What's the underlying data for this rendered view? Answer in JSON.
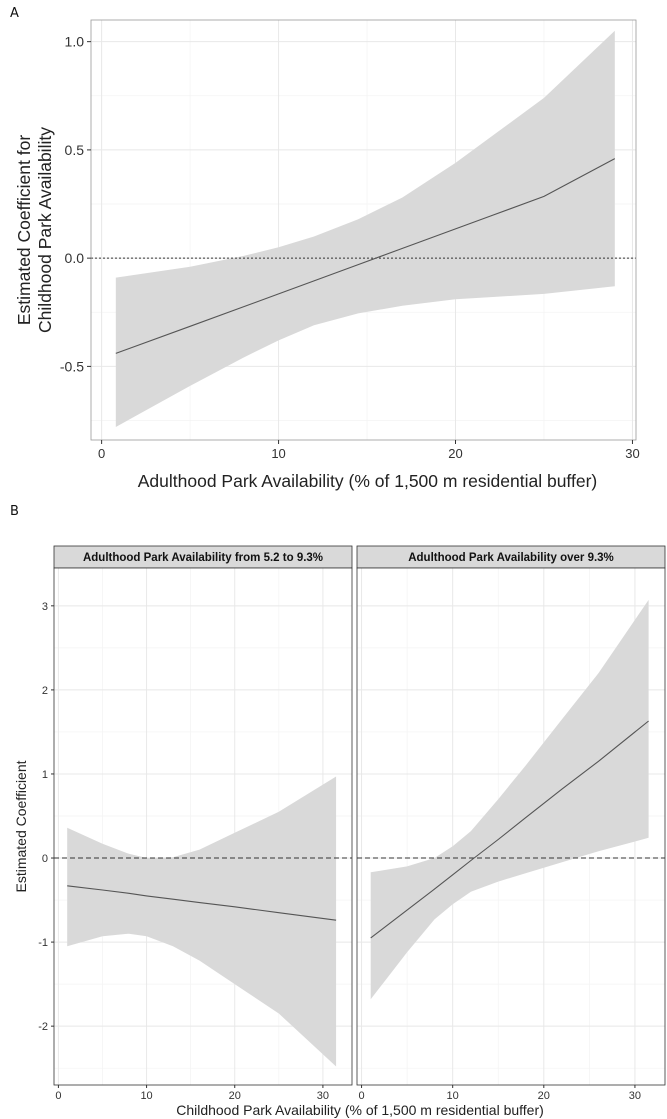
{
  "figure": {
    "panel_a_label": "A",
    "panel_b_label": "B"
  },
  "colors": {
    "ribbon": "#d9d9d9",
    "line": "#555555",
    "grid_major": "#e8e8e8",
    "grid_minor": "#f3f3f3",
    "strip_bg": "#d9d9d9",
    "border": "#333333"
  },
  "chart_data": [
    {
      "type": "line",
      "panel": "A",
      "xlabel": "Adulthood Park Availability (% of 1,500 m residential buffer)",
      "ylabel": "Estimated Coefficient for Childhood Park Availability",
      "xlim": [
        -0.6,
        30.2
      ],
      "ylim": [
        -0.84,
        1.1
      ],
      "xticks": [
        0,
        10,
        20,
        30
      ],
      "xtick_labels": [
        "0",
        "10",
        "20",
        "30"
      ],
      "yticks": [
        -0.5,
        0.0,
        0.5,
        1.0
      ],
      "ytick_labels": [
        "-0.5",
        "0.0",
        "0.5",
        "1.0"
      ],
      "reference_line": {
        "y": 0,
        "style": "dotted"
      },
      "grid": true,
      "series": [
        {
          "x": [
            0.8,
            5,
            8,
            10,
            12,
            14.5,
            17,
            20,
            22,
            25,
            29
          ],
          "y": [
            -0.44,
            -0.315,
            -0.225,
            -0.165,
            -0.105,
            -0.03,
            0.045,
            0.135,
            0.195,
            0.285,
            0.46
          ],
          "lower": [
            -0.78,
            -0.59,
            -0.46,
            -0.38,
            -0.31,
            -0.255,
            -0.22,
            -0.19,
            -0.18,
            -0.165,
            -0.13
          ],
          "upper": [
            -0.09,
            -0.04,
            0.01,
            0.05,
            0.1,
            0.18,
            0.28,
            0.44,
            0.56,
            0.74,
            1.05
          ]
        }
      ]
    },
    {
      "type": "line",
      "panel": "B",
      "facets": [
        {
          "title": "Adulthood Park Availability from 5.2 to 9.3%",
          "x": [
            1,
            5,
            8,
            10,
            13,
            16,
            20,
            25,
            31.5
          ],
          "y": [
            -0.33,
            -0.38,
            -0.42,
            -0.45,
            -0.49,
            -0.53,
            -0.58,
            -0.65,
            -0.74
          ],
          "lower": [
            -1.05,
            -0.93,
            -0.9,
            -0.93,
            -1.05,
            -1.22,
            -1.5,
            -1.85,
            -2.48
          ],
          "upper": [
            0.36,
            0.17,
            0.05,
            0.0,
            0.01,
            0.1,
            0.3,
            0.55,
            0.97
          ]
        },
        {
          "title": "Adulthood Park Availability over 9.3%",
          "x": [
            1,
            5,
            8,
            10,
            12,
            15,
            18,
            22,
            26,
            31.5
          ],
          "y": [
            -0.95,
            -0.62,
            -0.37,
            -0.2,
            -0.03,
            0.22,
            0.48,
            0.82,
            1.15,
            1.63
          ],
          "lower": [
            -1.68,
            -1.12,
            -0.73,
            -0.55,
            -0.4,
            -0.28,
            -0.18,
            -0.05,
            0.08,
            0.24
          ],
          "upper": [
            -0.17,
            -0.1,
            0.0,
            0.14,
            0.32,
            0.7,
            1.1,
            1.65,
            2.2,
            3.07
          ]
        }
      ],
      "xlabel": "Childhood Park Availability (% of 1,500 m residential buffer)",
      "ylabel": "Estimated Coefficient",
      "xlim": [
        -0.5,
        33.3
      ],
      "ylim": [
        -2.7,
        3.45
      ],
      "xticks": [
        0,
        10,
        20,
        30
      ],
      "xtick_labels": [
        "0",
        "10",
        "20",
        "30"
      ],
      "yticks": [
        -2,
        -1,
        0,
        1,
        2,
        3
      ],
      "ytick_labels": [
        "-2",
        "-1",
        "0",
        "1",
        "2",
        "3"
      ],
      "reference_line": {
        "y": 0,
        "style": "dashed"
      },
      "grid": true
    }
  ]
}
